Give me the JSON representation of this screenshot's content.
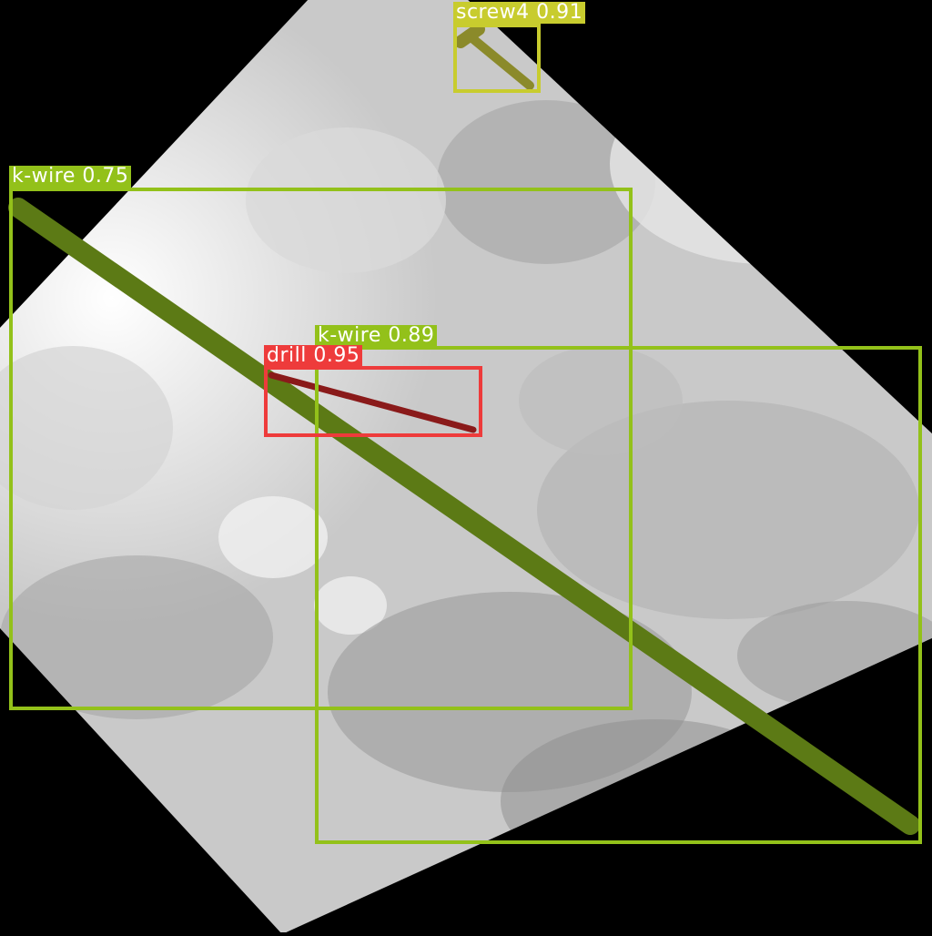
{
  "image": {
    "description_type": "fluoroscopy-xray-with-detections",
    "background": "#000000",
    "xray_tone_light": "#f4f4f4",
    "xray_tone_dark": "#8a8a8a"
  },
  "detections": [
    {
      "id": "screw4",
      "label": "screw4 0.91",
      "class": "screw4",
      "confidence": 0.91,
      "color": "#c8cc2e"
    },
    {
      "id": "kwire-a",
      "label": "k-wire 0.75",
      "class": "k-wire",
      "confidence": 0.75,
      "color": "#93c11a"
    },
    {
      "id": "kwire-b",
      "label": "k-wire 0.89",
      "class": "k-wire",
      "confidence": 0.89,
      "color": "#93c11a"
    },
    {
      "id": "drill",
      "label": "drill 0.95",
      "class": "drill",
      "confidence": 0.95,
      "color": "#ee3b3b"
    }
  ]
}
